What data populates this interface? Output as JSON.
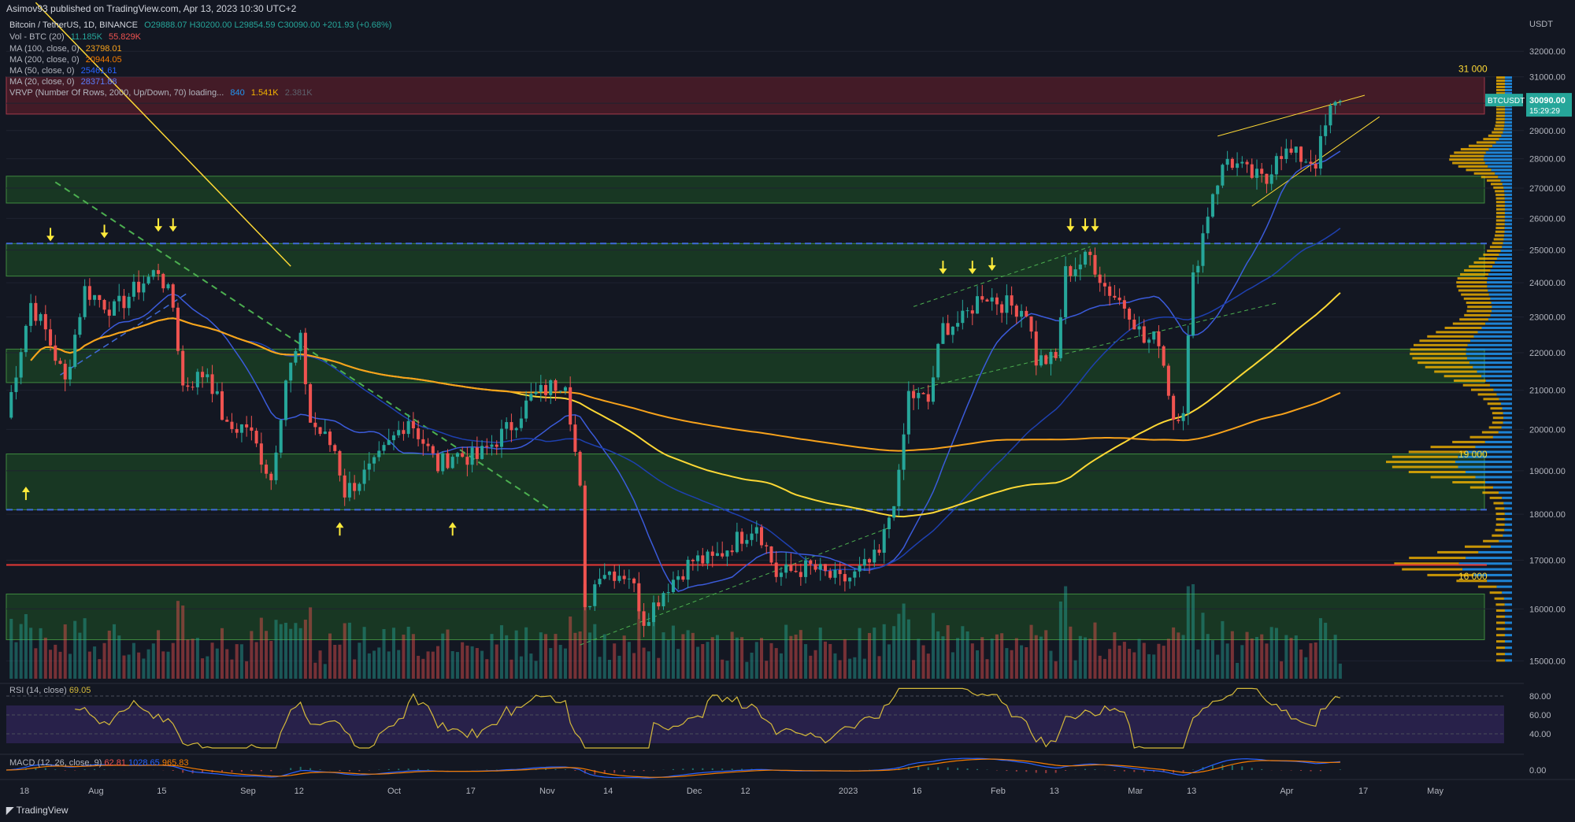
{
  "header": {
    "published": "Asimov93 published on TradingView.com, Apr 13, 2023 10:30 UTC+2"
  },
  "legend": {
    "symbol": "Bitcoin / TetherUS, 1D, BINANCE",
    "ohlc": "O29888.07 H30200.00 L29854.59 C30090.00 +201.93 (+0.68%)",
    "vol": {
      "label": "Vol - BTC (20)",
      "v1": "11.185K",
      "v2": "55.829K"
    },
    "ma100": {
      "label": "MA (100, close, 0)",
      "value": "23798.01"
    },
    "ma200": {
      "label": "MA (200, close, 0)",
      "value": "20944.05"
    },
    "ma50": {
      "label": "MA (50, close, 0)",
      "value": "25461.61"
    },
    "ma20": {
      "label": "MA (20, close, 0)",
      "value": "28371.88"
    },
    "vrvp": {
      "label": "VRVP (Number Of Rows, 2000, Up/Down, 70) loading...",
      "v1": "840",
      "v2": "1.541K",
      "v3": "2.381K"
    }
  },
  "price_axis": {
    "currency": "USDT",
    "ticks": [
      "32000.00",
      "31000.00",
      "30000.00",
      "29000.00",
      "28000.00",
      "27000.00",
      "26000.00",
      "25000.00",
      "24000.00",
      "23000.00",
      "22000.00",
      "21000.00",
      "20000.00",
      "19000.00",
      "18000.00",
      "17000.00",
      "16000.00",
      "15000.00"
    ],
    "last_label": "30090.00",
    "last_timer": "15:29:29",
    "symbol_tag": "BTCUSDT"
  },
  "annotations": {
    "level_31k": "31 000",
    "level_19k": "19 000",
    "level_16k": "16 000"
  },
  "time_axis": [
    "18",
    "Aug",
    "15",
    "Sep",
    "12",
    "Oct",
    "17",
    "Nov",
    "14",
    "Dec",
    "12",
    "2023",
    "16",
    "Feb",
    "13",
    "Mar",
    "13",
    "Apr",
    "17",
    "May"
  ],
  "rsi": {
    "label": "RSI (14, close)",
    "value": "69.05",
    "ticks": [
      "80.00",
      "60.00",
      "40.00"
    ]
  },
  "macd": {
    "label": "MACD (12, 26, close, 9)",
    "v1": "62.81",
    "v2": "1028.65",
    "v3": "965.83",
    "tick": "0.00"
  },
  "footer": {
    "brand": "TradingView"
  },
  "colors": {
    "up": "#26a69a",
    "down": "#ef5350",
    "ma100": "#f7a21b",
    "ma200": "#f57c00",
    "ma50": "#2962ff",
    "ma20": "#fdd835",
    "zone_green": "#1b5e20",
    "zone_red": "#7f1d2d",
    "rsi": "#d4b93a",
    "vp_up": "#2196f3",
    "vp_down": "#f5b400"
  },
  "chart_data": {
    "type": "candlestick",
    "title": "Bitcoin / TetherUS, 1D, BINANCE",
    "ylabel": "USDT",
    "ylim": [
      14700,
      32800
    ],
    "log_scale": true,
    "x_start": "2022-07-14",
    "x_end": "2023-05-09",
    "close_path": [
      [
        "2022-07-14",
        20300
      ],
      [
        "2022-07-19",
        23400
      ],
      [
        "2022-07-22",
        22600
      ],
      [
        "2022-07-26",
        21200
      ],
      [
        "2022-07-30",
        23800
      ],
      [
        "2022-08-05",
        23200
      ],
      [
        "2022-08-10",
        23900
      ],
      [
        "2022-08-14",
        24400
      ],
      [
        "2022-08-17",
        23300
      ],
      [
        "2022-08-19",
        21100
      ],
      [
        "2022-08-24",
        21500
      ],
      [
        "2022-08-28",
        20000
      ],
      [
        "2022-09-01",
        20100
      ],
      [
        "2022-09-06",
        18800
      ],
      [
        "2022-09-09",
        21300
      ],
      [
        "2022-09-12",
        22300
      ],
      [
        "2022-09-14",
        20200
      ],
      [
        "2022-09-19",
        19500
      ],
      [
        "2022-09-21",
        18500
      ],
      [
        "2022-09-27",
        19100
      ],
      [
        "2022-10-04",
        20300
      ],
      [
        "2022-10-10",
        19100
      ],
      [
        "2022-10-13",
        19400
      ],
      [
        "2022-10-18",
        19300
      ],
      [
        "2022-10-25",
        20100
      ],
      [
        "2022-10-29",
        20800
      ],
      [
        "2022-11-05",
        21300
      ],
      [
        "2022-11-08",
        18500
      ],
      [
        "2022-11-09",
        15900
      ],
      [
        "2022-11-12",
        16800
      ],
      [
        "2022-11-18",
        16700
      ],
      [
        "2022-11-21",
        15800
      ],
      [
        "2022-11-26",
        16500
      ],
      [
        "2022-12-01",
        17000
      ],
      [
        "2022-12-05",
        17000
      ],
      [
        "2022-12-14",
        17800
      ],
      [
        "2022-12-18",
        16700
      ],
      [
        "2022-12-25",
        16850
      ],
      [
        "2022-12-31",
        16550
      ],
      [
        "2023-01-03",
        16680
      ],
      [
        "2023-01-08",
        17100
      ],
      [
        "2023-01-12",
        18800
      ],
      [
        "2023-01-14",
        20900
      ],
      [
        "2023-01-18",
        20700
      ],
      [
        "2023-01-21",
        22700
      ],
      [
        "2023-01-25",
        22900
      ],
      [
        "2023-01-29",
        23700
      ],
      [
        "2023-02-02",
        23400
      ],
      [
        "2023-02-07",
        23200
      ],
      [
        "2023-02-09",
        21800
      ],
      [
        "2023-02-13",
        21800
      ],
      [
        "2023-02-15",
        24300
      ],
      [
        "2023-02-17",
        24500
      ],
      [
        "2023-02-20",
        24800
      ],
      [
        "2023-02-23",
        23900
      ],
      [
        "2023-02-28",
        23200
      ],
      [
        "2023-03-03",
        22300
      ],
      [
        "2023-03-06",
        22400
      ],
      [
        "2023-03-09",
        20300
      ],
      [
        "2023-03-11",
        20600
      ],
      [
        "2023-03-13",
        24100
      ],
      [
        "2023-03-17",
        26900
      ],
      [
        "2023-03-20",
        28000
      ],
      [
        "2023-03-24",
        27500
      ],
      [
        "2023-03-28",
        27200
      ],
      [
        "2023-03-30",
        28300
      ],
      [
        "2023-04-03",
        28100
      ],
      [
        "2023-04-07",
        27900
      ],
      [
        "2023-04-10",
        29700
      ],
      [
        "2023-04-12",
        30090
      ]
    ],
    "last_close": 30090,
    "horizontal_levels": [
      {
        "type": "dashed",
        "value": 25200
      },
      {
        "type": "dashed",
        "value": 18100
      },
      {
        "type": "solid",
        "value": 16900
      }
    ],
    "zones": [
      {
        "kind": "resistance",
        "from": 29600,
        "to": 31000
      },
      {
        "kind": "support",
        "from": 26500,
        "to": 27400
      },
      {
        "kind": "support",
        "from": 24200,
        "to": 25200
      },
      {
        "kind": "support",
        "from": 21200,
        "to": 22100
      },
      {
        "kind": "support",
        "from": 18100,
        "to": 19400
      },
      {
        "kind": "support",
        "from": 15400,
        "to": 16300
      }
    ]
  }
}
